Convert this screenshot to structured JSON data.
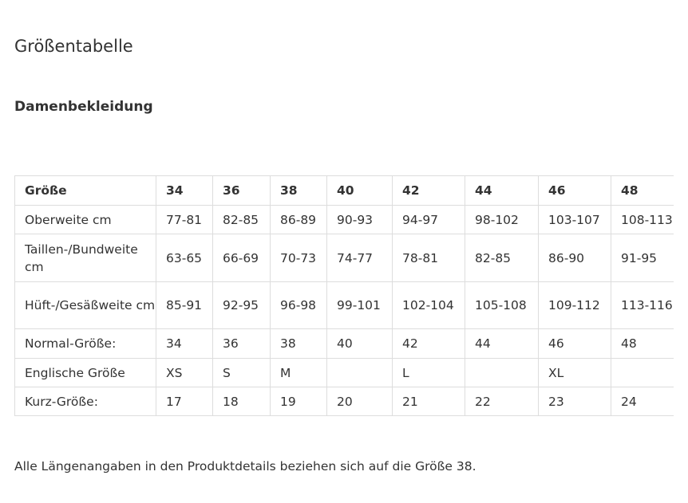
{
  "page": {
    "title": "Größentabelle",
    "section": "Damenbekleidung",
    "footnote": "Alle Längenangaben in den Produktdetails beziehen sich auf die Größe 38."
  },
  "table": {
    "header": [
      "Größe",
      "34",
      "36",
      "38",
      "40",
      "42",
      "44",
      "46",
      "48"
    ],
    "rows": [
      {
        "label": "Oberweite cm",
        "cells": [
          "77-81",
          "82-85",
          "86-89",
          "90-93",
          "94-97",
          "98-102",
          "103-107",
          "108-113"
        ]
      },
      {
        "label": "Taillen-/Bundweite cm",
        "cells": [
          "63-65",
          "66-69",
          "70-73",
          "74-77",
          "78-81",
          "82-85",
          "86-90",
          "91-95"
        ]
      },
      {
        "label": "Hüft-/Gesäßweite cm",
        "cells": [
          "85-91",
          "92-95",
          "96-98",
          "99-101",
          "102-104",
          "105-108",
          "109-112",
          "113-116"
        ]
      },
      {
        "label": "Normal-Größe:",
        "cells": [
          "34",
          "36",
          "38",
          "40",
          "42",
          "44",
          "46",
          "48"
        ]
      },
      {
        "label": "Englische Größe",
        "cells": [
          "XS",
          "S",
          "M",
          "",
          "L",
          "",
          "XL",
          ""
        ]
      },
      {
        "label": "Kurz-Größe:",
        "cells": [
          "17",
          "18",
          "19",
          "20",
          "21",
          "22",
          "23",
          "24"
        ]
      }
    ]
  }
}
